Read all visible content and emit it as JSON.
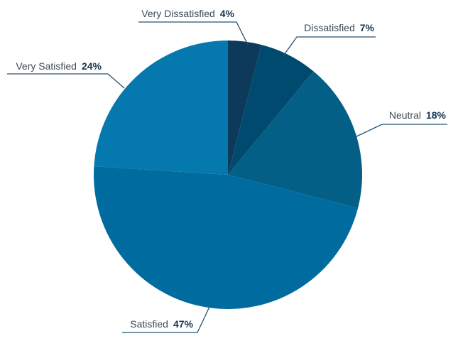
{
  "chart_data": {
    "type": "pie",
    "title": "",
    "start": "12 o'clock",
    "direction": "clockwise",
    "slices": [
      {
        "label": "Very Dissatisfied",
        "value": 4,
        "value_label": "4%",
        "color": "#0d3a5a"
      },
      {
        "label": "Dissatisfied",
        "value": 7,
        "value_label": "7%",
        "color": "#004a6f"
      },
      {
        "label": "Neutral",
        "value": 18,
        "value_label": "18%",
        "color": "#045f86"
      },
      {
        "label": "Satisfied",
        "value": 47,
        "value_label": "47%",
        "color": "#006b9f"
      },
      {
        "label": "Very Satisfied",
        "value": 24,
        "value_label": "24%",
        "color": "#0578ad"
      }
    ],
    "legend": "none",
    "label_style": "outside labels with leader lines"
  }
}
